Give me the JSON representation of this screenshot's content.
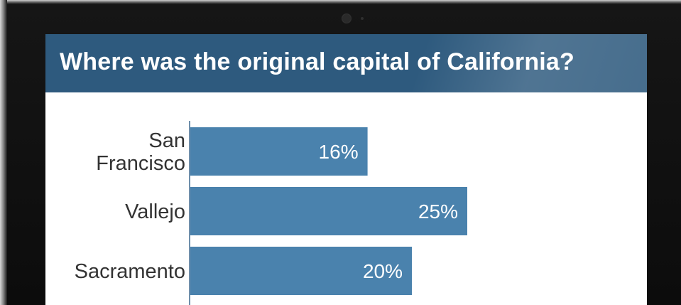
{
  "question": {
    "title": "Where was the original capital of California?"
  },
  "colors": {
    "bar": "#4a82ad",
    "title_bg": "#2e5a7e",
    "value_text": "#ffffff"
  },
  "chart_data": {
    "type": "bar",
    "orientation": "horizontal",
    "title": "Where was the original capital of California?",
    "categories": [
      [
        "San",
        "Francisco"
      ],
      [
        "Vallejo"
      ],
      [
        "Sacramento"
      ]
    ],
    "values": [
      16,
      25,
      20
    ],
    "value_labels": [
      "16%",
      "25%",
      "20%"
    ],
    "unit": "%",
    "grid": false,
    "legend": "none"
  }
}
